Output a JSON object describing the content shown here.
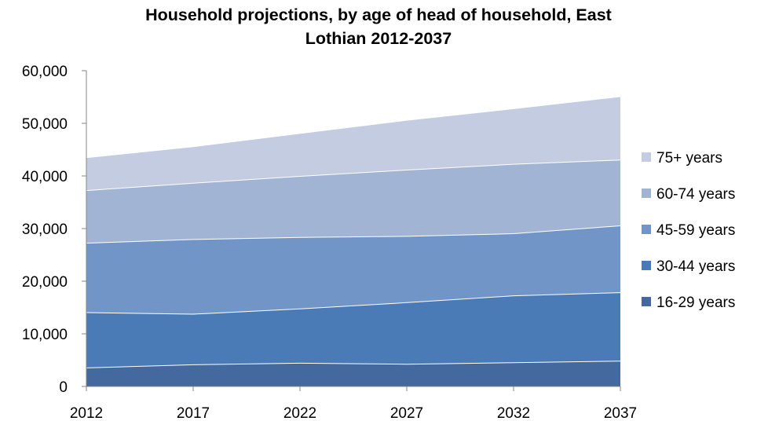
{
  "chart_data": {
    "type": "area",
    "stacked": true,
    "title_lines": [
      "Household projections, by age of head of household, East",
      "Lothian 2012-2037"
    ],
    "x": [
      "2012",
      "2017",
      "2022",
      "2027",
      "2032",
      "2037"
    ],
    "ylim": [
      0,
      60000
    ],
    "yticks": [
      0,
      10000,
      20000,
      30000,
      40000,
      50000,
      60000
    ],
    "ytick_labels": [
      "0",
      "10,000",
      "20,000",
      "30,000",
      "40,000",
      "50,000",
      "60,000"
    ],
    "grid": false,
    "legend_position": "right",
    "series": [
      {
        "name": "16-29 years",
        "color": "#43699e",
        "values": [
          3600,
          4200,
          4500,
          4300,
          4600,
          4900
        ]
      },
      {
        "name": "30-44 years",
        "color": "#4a7bb7",
        "values": [
          10500,
          9600,
          10300,
          11700,
          12700,
          13000
        ]
      },
      {
        "name": "45-59 years",
        "color": "#7295c7",
        "values": [
          13200,
          14200,
          13600,
          12600,
          11800,
          12700
        ]
      },
      {
        "name": "60-74 years",
        "color": "#a2b4d4",
        "values": [
          10000,
          10700,
          11600,
          12600,
          13200,
          12500
        ]
      },
      {
        "name": "75+ years",
        "color": "#c3cce1",
        "values": [
          6100,
          6800,
          8000,
          9300,
          10400,
          11900
        ]
      }
    ]
  }
}
